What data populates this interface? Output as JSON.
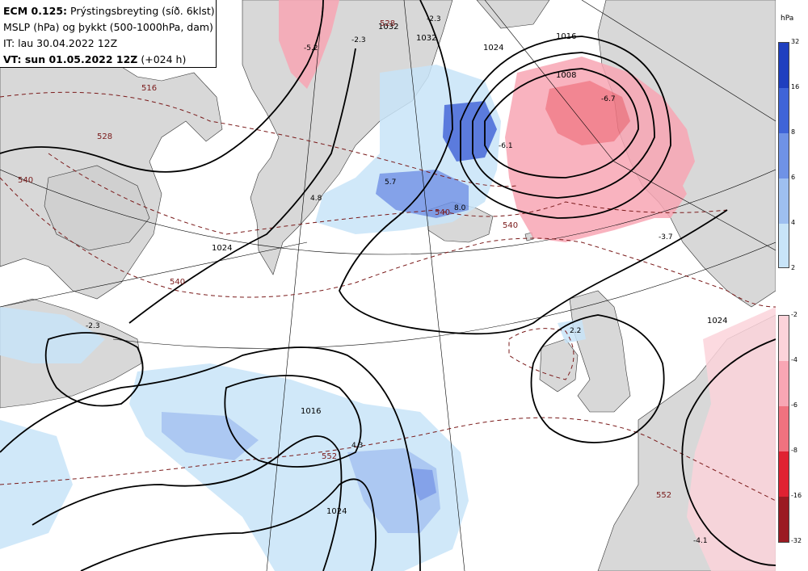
{
  "header": {
    "line1_model": "ECM 0.125:",
    "line1_desc": "Prýstingsbreyting (síð. 6klst)",
    "line2": "MSLP (hPa) og þykkt (500-1000hPa, dam)",
    "line3": "IT: lau 30.04.2022 12Z",
    "line4_vt": "VT: sun 01.05.2022 12Z",
    "line4_step": "(+024 h)"
  },
  "legend": {
    "unit": "hPa",
    "rise": {
      "labels": [
        "32",
        "16",
        "8",
        "6",
        "4",
        "2"
      ],
      "colors": [
        "#1f3fbf",
        "#3f64d8",
        "#6f92e6",
        "#9ebff0",
        "#c8e4f8"
      ]
    },
    "fall": {
      "labels": [
        "-2",
        "-4",
        "-6",
        "-8",
        "-16",
        "-32"
      ],
      "colors": [
        "#fcd3da",
        "#f8a6b4",
        "#f0727f",
        "#e02232",
        "#9b1a22"
      ]
    }
  },
  "map": {
    "colors": {
      "land": "#d8d8d8",
      "sea": "#ffffff",
      "isobar": "#000000",
      "thickness": "#7a1a1a",
      "graticule": "#000000"
    },
    "isobar_labels": [
      "1016",
      "1024",
      "1032",
      "1008",
      "1024",
      "1016",
      "1024",
      "1032",
      "1024"
    ],
    "thickness_labels": [
      "516",
      "528",
      "540",
      "540",
      "528",
      "540",
      "552",
      "552",
      "540"
    ],
    "tendency_labels": [
      "-2.3",
      "-5.2",
      "-2.3",
      "-6.1",
      "-6.7",
      "4.8",
      "5.7",
      "8.0",
      "2.2",
      "4.3",
      "-3.7",
      "-4.1",
      "-2.3"
    ]
  }
}
